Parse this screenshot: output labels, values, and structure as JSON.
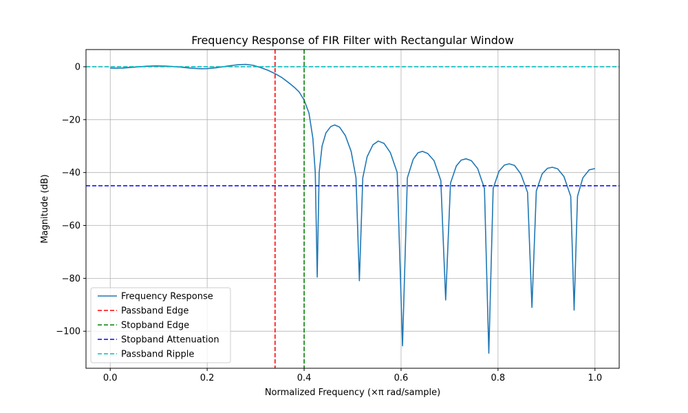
{
  "chart_data": {
    "type": "line",
    "title": "Frequency Response of FIR Filter with Rectangular Window",
    "xlabel": "Normalized Frequency (×π rad/sample)",
    "ylabel": "Magnitude (dB)",
    "xlim": [
      -0.05,
      1.05
    ],
    "ylim": [
      -114,
      6.5
    ],
    "xticks": [
      0.0,
      0.2,
      0.4,
      0.6,
      0.8,
      1.0
    ],
    "xtick_labels": [
      "0.0",
      "0.2",
      "0.4",
      "0.6",
      "0.8",
      "1.0"
    ],
    "yticks": [
      0,
      -20,
      -40,
      -60,
      -80,
      -100
    ],
    "ytick_labels": [
      "0",
      "−20",
      "−40",
      "−60",
      "−80",
      "−100"
    ],
    "grid": true,
    "legend_position": "lower-left",
    "series": [
      {
        "name": "Frequency Response",
        "kind": "line",
        "color": "#1f77b4",
        "lobes": [
          {
            "peak_x": 0.463,
            "peak_y": -22.0
          },
          {
            "peak_x": 0.553,
            "peak_y": -28.1
          },
          {
            "peak_x": 0.644,
            "peak_y": -32.0
          },
          {
            "peak_x": 0.734,
            "peak_y": -34.8
          },
          {
            "peak_x": 0.823,
            "peak_y": -36.7
          },
          {
            "peak_x": 0.912,
            "peak_y": -38.0
          }
        ],
        "nulls": [
          {
            "x": 0.427,
            "y": -79.5
          },
          {
            "x": 0.514,
            "y": -80.9
          },
          {
            "x": 0.603,
            "y": -105.5
          },
          {
            "x": 0.692,
            "y": -88.2
          },
          {
            "x": 0.781,
            "y": -108.3
          },
          {
            "x": 0.87,
            "y": -91.0
          },
          {
            "x": 0.957,
            "y": -92.0
          }
        ],
        "points": [
          [
            0.0,
            -0.5
          ],
          [
            0.01,
            -0.55
          ],
          [
            0.025,
            -0.5
          ],
          [
            0.05,
            -0.15
          ],
          [
            0.075,
            0.2
          ],
          [
            0.095,
            0.35
          ],
          [
            0.115,
            0.25
          ],
          [
            0.14,
            -0.05
          ],
          [
            0.165,
            -0.5
          ],
          [
            0.185,
            -0.75
          ],
          [
            0.2,
            -0.7
          ],
          [
            0.22,
            -0.35
          ],
          [
            0.245,
            0.35
          ],
          [
            0.265,
            0.8
          ],
          [
            0.28,
            0.9
          ],
          [
            0.295,
            0.55
          ],
          [
            0.31,
            -0.3
          ],
          [
            0.325,
            -1.3
          ],
          [
            0.34,
            -2.6
          ],
          [
            0.355,
            -4.2
          ],
          [
            0.37,
            -6.3
          ],
          [
            0.38,
            -7.8
          ],
          [
            0.39,
            -9.6
          ],
          [
            0.4,
            -12.6
          ],
          [
            0.41,
            -17.5
          ],
          [
            0.418,
            -27.0
          ],
          [
            0.423,
            -40.0
          ],
          [
            0.427,
            -79.5
          ],
          [
            0.431,
            -40.0
          ],
          [
            0.437,
            -30.0
          ],
          [
            0.445,
            -25.0
          ],
          [
            0.455,
            -22.6
          ],
          [
            0.463,
            -22.0
          ],
          [
            0.473,
            -22.8
          ],
          [
            0.485,
            -26.0
          ],
          [
            0.497,
            -32.0
          ],
          [
            0.507,
            -42.0
          ],
          [
            0.514,
            -80.9
          ],
          [
            0.521,
            -42.0
          ],
          [
            0.53,
            -34.0
          ],
          [
            0.542,
            -29.5
          ],
          [
            0.553,
            -28.1
          ],
          [
            0.565,
            -29.0
          ],
          [
            0.578,
            -32.5
          ],
          [
            0.592,
            -40.0
          ],
          [
            0.603,
            -105.5
          ],
          [
            0.613,
            -42.0
          ],
          [
            0.625,
            -35.0
          ],
          [
            0.635,
            -32.5
          ],
          [
            0.644,
            -32.0
          ],
          [
            0.655,
            -32.8
          ],
          [
            0.668,
            -35.5
          ],
          [
            0.682,
            -43.0
          ],
          [
            0.692,
            -88.2
          ],
          [
            0.702,
            -44.0
          ],
          [
            0.714,
            -37.5
          ],
          [
            0.724,
            -35.3
          ],
          [
            0.734,
            -34.8
          ],
          [
            0.745,
            -35.5
          ],
          [
            0.758,
            -38.5
          ],
          [
            0.772,
            -46.0
          ],
          [
            0.781,
            -108.3
          ],
          [
            0.79,
            -46.0
          ],
          [
            0.802,
            -39.5
          ],
          [
            0.813,
            -37.2
          ],
          [
            0.823,
            -36.7
          ],
          [
            0.834,
            -37.3
          ],
          [
            0.847,
            -40.5
          ],
          [
            0.861,
            -47.5
          ],
          [
            0.87,
            -91.0
          ],
          [
            0.879,
            -47.0
          ],
          [
            0.891,
            -40.5
          ],
          [
            0.902,
            -38.4
          ],
          [
            0.912,
            -38.0
          ],
          [
            0.923,
            -38.6
          ],
          [
            0.936,
            -41.5
          ],
          [
            0.95,
            -49.0
          ],
          [
            0.957,
            -92.0
          ],
          [
            0.964,
            -49.0
          ],
          [
            0.975,
            -42.0
          ],
          [
            0.988,
            -39.0
          ],
          [
            1.0,
            -38.5
          ]
        ]
      },
      {
        "name": "Passband Edge",
        "kind": "vline",
        "x": 0.34,
        "color": "#ff0000",
        "dashed": true
      },
      {
        "name": "Stopband Edge",
        "kind": "vline",
        "x": 0.4,
        "color": "#008000",
        "dashed": true
      },
      {
        "name": "Stopband Attenuation",
        "kind": "hline",
        "y": -45,
        "color": "#0000ff",
        "dashed": true
      },
      {
        "name": "Passband Ripple",
        "kind": "hline",
        "y": 0,
        "color": "#00bfbf",
        "dashed": true
      }
    ]
  }
}
